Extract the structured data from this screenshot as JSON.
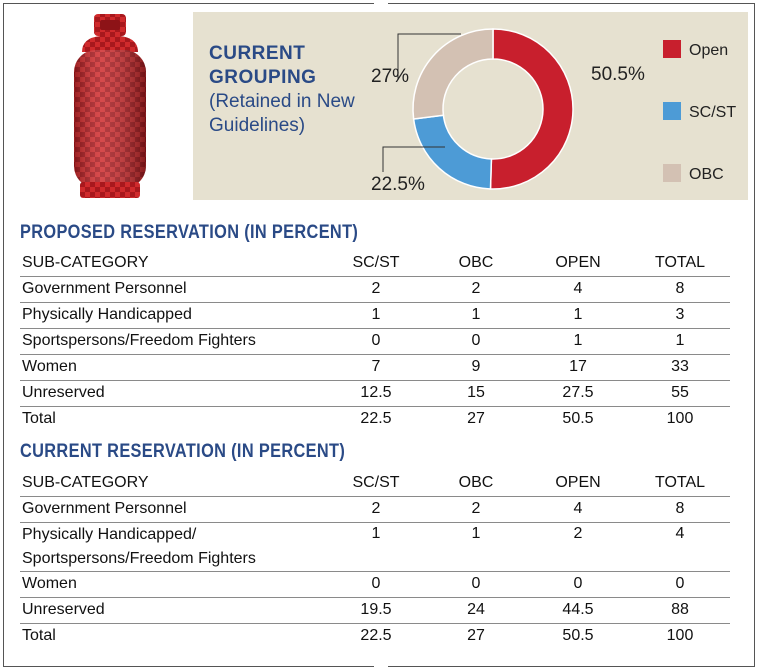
{
  "grouping": {
    "title_line1": "CURRENT",
    "title_line2": "GROUPING",
    "title_line3": "(Retained in New",
    "title_line4": "Guidelines)"
  },
  "colors": {
    "open": "#c81f2d",
    "scst": "#4d9bd6",
    "obc": "#d3c1b3",
    "title_blue": "#2a4a86",
    "panel_bg": "#e6e1d0"
  },
  "chart_data": {
    "type": "pie",
    "title": "CURRENT GROUPING (Retained in New Guidelines)",
    "labels": [
      "Open",
      "SC/ST",
      "OBC"
    ],
    "values": [
      50.5,
      22.5,
      27
    ],
    "value_labels": [
      "50.5%",
      "22.5%",
      "27%"
    ],
    "donut": true,
    "legend": "right"
  },
  "proposed": {
    "title": "PROPOSED  RESERVATION (IN PERCENT)",
    "headers": [
      "SUB-CATEGORY",
      "SC/ST",
      "OBC",
      "OPEN",
      "TOTAL"
    ],
    "rows": [
      {
        "category": "Government Personnel",
        "scst": "2",
        "obc": "2",
        "open": "4",
        "total": "8"
      },
      {
        "category": "Physically Handicapped",
        "scst": "1",
        "obc": "1",
        "open": "1",
        "total": "3"
      },
      {
        "category": "Sportspersons/Freedom Fighters",
        "scst": "0",
        "obc": "0",
        "open": "1",
        "total": "1"
      },
      {
        "category": "Women",
        "scst": "7",
        "obc": "9",
        "open": "17",
        "total": "33"
      },
      {
        "category": "Unreserved",
        "scst": "12.5",
        "obc": "15",
        "open": "27.5",
        "total": "55"
      },
      {
        "category": "Total",
        "scst": "22.5",
        "obc": "27",
        "open": "50.5",
        "total": "100"
      }
    ]
  },
  "current": {
    "title": "CURRENT  RESERVATION (IN PERCENT)",
    "headers": [
      "SUB-CATEGORY",
      "SC/ST",
      "OBC",
      "OPEN",
      "TOTAL"
    ],
    "rows": [
      {
        "category": "Government Personnel",
        "scst": "2",
        "obc": "2",
        "open": "4",
        "total": "8"
      },
      {
        "category_line1": "Physically Handicapped/",
        "category_line2": "Sportspersons/Freedom Fighters",
        "scst": "1",
        "obc": "1",
        "open": "2",
        "total": "4"
      },
      {
        "category": "Women",
        "scst": "0",
        "obc": "0",
        "open": "0",
        "total": "0"
      },
      {
        "category": "Unreserved",
        "scst": "19.5",
        "obc": "24",
        "open": "44.5",
        "total": "88"
      },
      {
        "category": "Total",
        "scst": "22.5",
        "obc": "27",
        "open": "50.5",
        "total": "100"
      }
    ]
  }
}
